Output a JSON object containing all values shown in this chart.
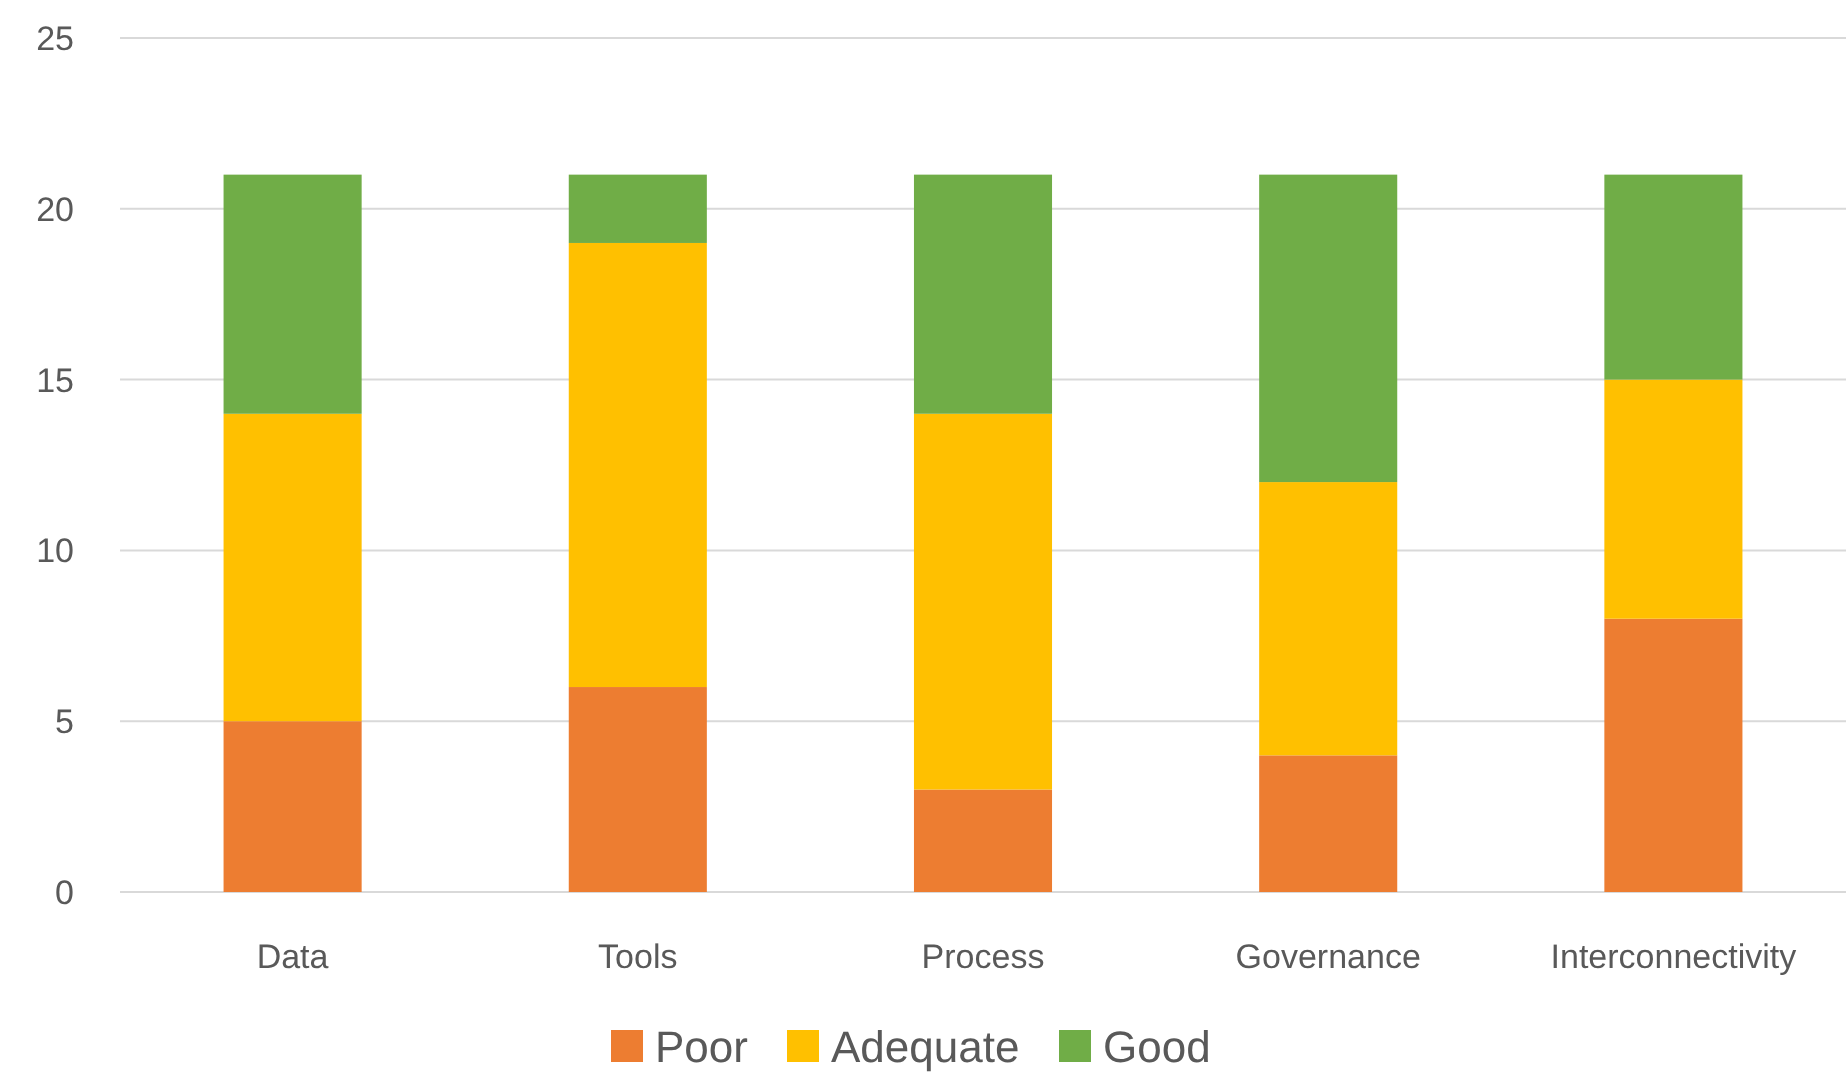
{
  "chart_data": {
    "type": "bar",
    "stacked": true,
    "categories": [
      "Data",
      "Tools",
      "Process",
      "Governance",
      "Interconnectivity"
    ],
    "series": [
      {
        "name": "Poor",
        "color": "#ed7d31",
        "values": [
          5,
          6,
          3,
          4,
          8
        ]
      },
      {
        "name": "Adequate",
        "color": "#ffc000",
        "values": [
          9,
          13,
          11,
          8,
          7
        ]
      },
      {
        "name": "Good",
        "color": "#70ad47",
        "values": [
          7,
          2,
          7,
          9,
          6
        ]
      }
    ],
    "ylim": [
      0,
      25
    ],
    "yticks": [
      0,
      5,
      10,
      15,
      20,
      25
    ],
    "grid": "y",
    "legend": "bottom"
  }
}
